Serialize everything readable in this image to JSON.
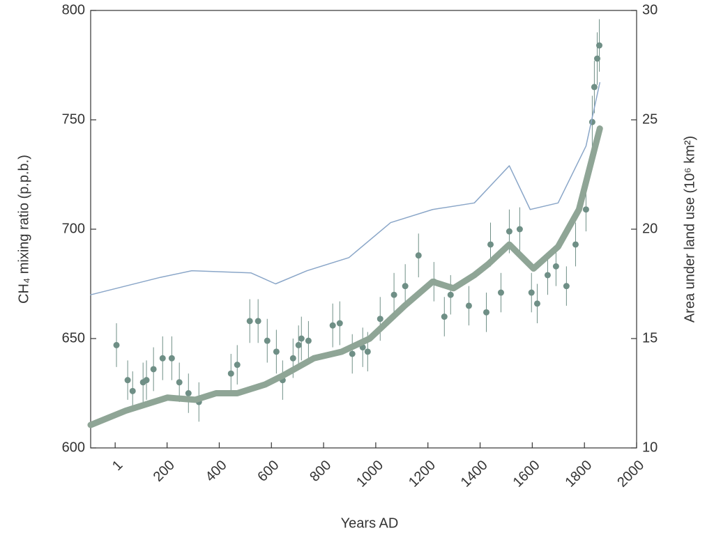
{
  "chart_data": {
    "type": "scatter",
    "xlabel": "Years AD",
    "ylabel": "CH₄ mixing ratio (p.p.b.)",
    "y2label": "Area under land use (10⁶ km²)",
    "xlim": [
      -93,
      2000
    ],
    "xticks": [
      1,
      200,
      400,
      600,
      800,
      1000,
      1200,
      1400,
      1600,
      1800,
      2000
    ],
    "ylim": [
      600,
      800
    ],
    "yticks": [
      600,
      650,
      700,
      750,
      800
    ],
    "y2lim": [
      10,
      30
    ],
    "y2ticks": [
      10,
      15,
      20,
      25,
      30
    ],
    "series": [
      {
        "type": "scatter",
        "color": "#6f8f86",
        "x": [
          6,
          49,
          68,
          108,
          121,
          148,
          183,
          218,
          247,
          282,
          322,
          445,
          469,
          517,
          549,
          584,
          619,
          643,
          683,
          704,
          715,
          742,
          835,
          862,
          910,
          950,
          969,
          1017,
          1070,
          1113,
          1164,
          1223,
          1263,
          1287,
          1357,
          1424,
          1440,
          1480,
          1512,
          1552,
          1597,
          1619,
          1659,
          1691,
          1731,
          1766,
          1806,
          1830,
          1838,
          1849,
          1857
        ],
        "values": [
          647,
          631,
          626,
          630,
          631,
          636,
          641,
          641,
          630,
          625,
          621,
          634,
          638,
          658,
          658,
          649,
          644,
          631,
          641,
          647,
          650,
          649,
          656,
          657,
          643,
          646,
          644,
          659,
          670,
          674,
          688,
          676,
          660,
          670,
          665,
          662,
          693,
          671,
          699,
          700,
          671,
          666,
          679,
          683,
          674,
          693,
          709,
          749,
          765,
          778,
          784
        ],
        "errors": [
          10,
          9,
          9,
          9,
          9,
          10,
          10,
          10,
          9,
          9,
          9,
          9,
          9,
          10,
          10,
          10,
          10,
          9,
          9,
          9,
          10,
          9,
          10,
          10,
          9,
          9,
          9,
          10,
          10,
          10,
          10,
          9,
          9,
          9,
          9,
          9,
          10,
          9,
          10,
          10,
          9,
          9,
          9,
          9,
          9,
          10,
          10,
          12,
          12,
          12,
          12
        ]
      },
      {
        "type": "line",
        "axis": "y2",
        "color": "#8fa596",
        "width": 9,
        "x": [
          -93,
          41,
          201,
          308,
          388,
          469,
          576,
          643,
          763,
          870,
          977,
          1111,
          1218,
          1298,
          1378,
          1431,
          1512,
          1605,
          1699,
          1779,
          1859
        ],
        "values": [
          11.05,
          11.7,
          12.3,
          12.2,
          12.5,
          12.5,
          12.9,
          13.3,
          14.1,
          14.4,
          15.0,
          16.5,
          17.6,
          17.3,
          17.9,
          18.4,
          19.3,
          18.2,
          19.2,
          20.9,
          24.6
        ]
      },
      {
        "type": "line",
        "axis": "y2",
        "color": "#8aa6c8",
        "width": 1.5,
        "x": [
          -93,
          175,
          295,
          522,
          616,
          736,
          897,
          1057,
          1218,
          1378,
          1512,
          1592,
          1699,
          1806,
          1859
        ],
        "values": [
          17.0,
          17.8,
          18.1,
          18.0,
          17.5,
          18.1,
          18.7,
          20.3,
          20.9,
          21.2,
          22.9,
          20.9,
          21.2,
          23.8,
          26.7
        ]
      }
    ]
  }
}
